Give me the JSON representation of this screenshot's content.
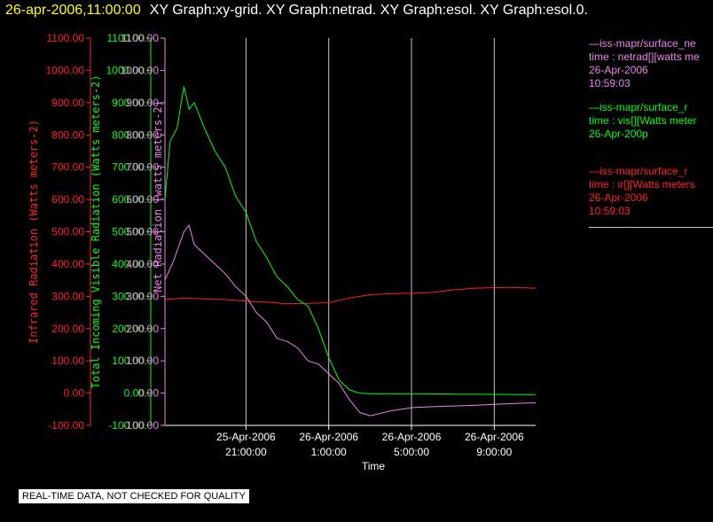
{
  "header": {
    "date_label": "26-apr-2006,11:00:00",
    "graphs_label": "XY Graph:xy-grid.  XY Graph:netrad.  XY Graph:esol.  XY Graph:esol.0."
  },
  "disclaimer": "REAL-TIME DATA, NOT CHECKED FOR QUALITY",
  "colors": {
    "ir": "#ff2020",
    "vis": "#00ff00",
    "net": "#ee82ee",
    "grid": "#c8c8c8",
    "axis_text": "#ffffff"
  },
  "legend": [
    {
      "id": "net",
      "line1": "—iss-mapr/surface_ne",
      "line2": "time : netrad[][watts me",
      "line3": "26-Apr-2006",
      "line4": "10:59:03"
    },
    {
      "id": "vis",
      "line1": "—iss-mapr/surface_r",
      "line2": "time : vis[][Watts meter",
      "line3": "26-Apr-200p",
      "line4": ""
    },
    {
      "id": "ir",
      "line1": "—iss-mapr/surface_r",
      "line2": "time : ir[][Watts meters",
      "line3": "26-Apr-2006",
      "line4": "10:59:03"
    }
  ],
  "chart_data": {
    "type": "line",
    "title": "",
    "xlabel": "Time",
    "x_ticks": [
      {
        "line1": "25-Apr-2006",
        "line2": "21:00:00",
        "t": "2006-04-25T21:00:00"
      },
      {
        "line1": "26-Apr-2006",
        "line2": "1:00:00",
        "t": "2006-04-26T01:00:00"
      },
      {
        "line1": "26-Apr-2006",
        "line2": "5:00:00",
        "t": "2006-04-26T05:00:00"
      },
      {
        "line1": "26-Apr-2006",
        "line2": "9:00:00",
        "t": "2006-04-26T09:00:00"
      }
    ],
    "xlim": [
      "2006-04-25T17:05:00",
      "2006-04-26T11:00:00"
    ],
    "grid": "vertical",
    "y_axes": [
      {
        "id": "ir",
        "label": "Infrared Radiation (Watts meters-2)",
        "ylim": [
          -100,
          1100
        ],
        "ticks": [
          "-100.00",
          "0.00",
          "100.00",
          "200.00",
          "300.00",
          "400.00",
          "500.00",
          "600.00",
          "700.00",
          "800.00",
          "900.00",
          "1000.00",
          "1100.00"
        ]
      },
      {
        "id": "vis",
        "label": "Total Incoming Visible Radiation (Watts meters-2)",
        "ylim": [
          -100,
          1100
        ],
        "ticks": [
          "-100.00",
          "0.00",
          "100.00",
          "200.00",
          "300.00",
          "400.00",
          "500.00",
          "600.00",
          "700.00",
          "800.00",
          "900.00",
          "1000.00",
          "1100.00"
        ]
      },
      {
        "id": "net",
        "label": "Net Radiation (watts meters-2)",
        "ylim": [
          -100,
          1100
        ],
        "ticks": [
          "-100.00",
          "0.00",
          "100.00",
          "200.00",
          "300.00",
          "400.00",
          "500.00",
          "600.00",
          "700.00",
          "800.00",
          "900.00",
          "1000.00",
          "1100.00"
        ]
      }
    ],
    "series": [
      {
        "id": "ir",
        "x": [
          "2006-04-25T17:05",
          "2006-04-25T18:00",
          "2006-04-25T19:00",
          "2006-04-25T20:00",
          "2006-04-25T21:00",
          "2006-04-25T22:00",
          "2006-04-25T23:00",
          "2006-04-26T00:00",
          "2006-04-26T01:00",
          "2006-04-26T02:00",
          "2006-04-26T03:00",
          "2006-04-26T04:00",
          "2006-04-26T05:00",
          "2006-04-26T06:00",
          "2006-04-26T07:00",
          "2006-04-26T08:00",
          "2006-04-26T09:00",
          "2006-04-26T10:00",
          "2006-04-26T11:00"
        ],
        "y": [
          290,
          295,
          292,
          290,
          285,
          282,
          277,
          278,
          280,
          295,
          305,
          308,
          310,
          312,
          320,
          325,
          327,
          328,
          325
        ]
      },
      {
        "id": "vis",
        "x": [
          "2006-04-25T17:05",
          "2006-04-25T17:20",
          "2006-04-25T17:40",
          "2006-04-25T18:00",
          "2006-04-25T18:15",
          "2006-04-25T18:30",
          "2006-04-25T19:00",
          "2006-04-25T19:30",
          "2006-04-25T20:00",
          "2006-04-25T20:30",
          "2006-04-25T21:00",
          "2006-04-25T21:30",
          "2006-04-25T22:00",
          "2006-04-25T22:30",
          "2006-04-25T23:00",
          "2006-04-25T23:30",
          "2006-04-26T00:00",
          "2006-04-26T00:30",
          "2006-04-26T01:00",
          "2006-04-26T01:30",
          "2006-04-26T02:00",
          "2006-04-26T02:30",
          "2006-04-26T03:00",
          "2006-04-26T05:00",
          "2006-04-26T07:00",
          "2006-04-26T09:00",
          "2006-04-26T11:00"
        ],
        "y": [
          600,
          780,
          820,
          950,
          880,
          900,
          820,
          750,
          700,
          610,
          560,
          470,
          420,
          360,
          330,
          290,
          270,
          200,
          110,
          40,
          10,
          0,
          -2,
          -2,
          -3,
          -4,
          -5
        ]
      },
      {
        "id": "net",
        "x": [
          "2006-04-25T17:05",
          "2006-04-25T17:30",
          "2006-04-25T18:00",
          "2006-04-25T18:15",
          "2006-04-25T18:30",
          "2006-04-25T19:00",
          "2006-04-25T19:30",
          "2006-04-25T20:00",
          "2006-04-25T20:30",
          "2006-04-25T21:00",
          "2006-04-25T21:30",
          "2006-04-25T22:00",
          "2006-04-25T22:30",
          "2006-04-25T23:00",
          "2006-04-25T23:30",
          "2006-04-26T00:00",
          "2006-04-26T00:30",
          "2006-04-26T01:00",
          "2006-04-26T01:30",
          "2006-04-26T02:00",
          "2006-04-26T02:30",
          "2006-04-26T03:00",
          "2006-04-26T04:00",
          "2006-04-26T05:00",
          "2006-04-26T06:00",
          "2006-04-26T07:00",
          "2006-04-26T08:00",
          "2006-04-26T09:00",
          "2006-04-26T10:00",
          "2006-04-26T11:00"
        ],
        "y": [
          350,
          410,
          500,
          520,
          460,
          430,
          400,
          370,
          330,
          300,
          250,
          220,
          170,
          160,
          140,
          100,
          90,
          60,
          30,
          -20,
          -60,
          -70,
          -55,
          -45,
          -42,
          -40,
          -38,
          -35,
          -32,
          -30
        ]
      }
    ]
  }
}
